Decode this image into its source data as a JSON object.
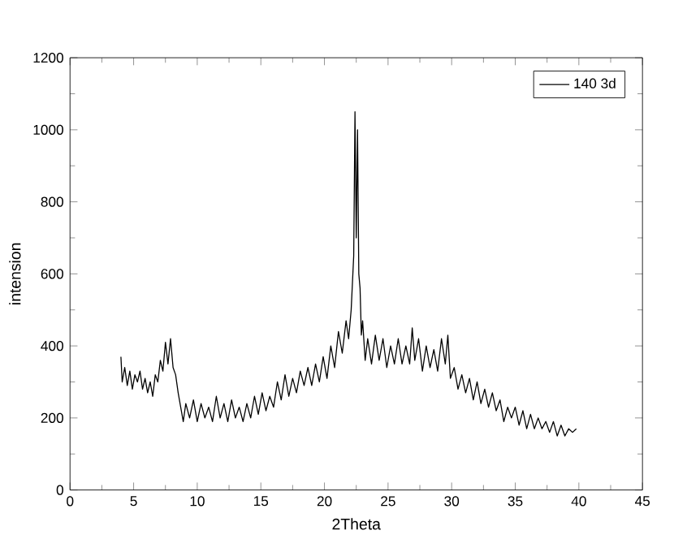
{
  "chart_data": {
    "type": "line",
    "xlabel": "2Theta",
    "ylabel": "intension",
    "xlim": [
      0,
      45
    ],
    "ylim": [
      0,
      1200
    ],
    "xticks": [
      0,
      5,
      10,
      15,
      20,
      25,
      30,
      35,
      40,
      45
    ],
    "yticks": [
      0,
      200,
      400,
      600,
      800,
      1000,
      1200
    ],
    "legend": "top right",
    "grid": false,
    "marker": "none",
    "line_style": "solid",
    "series": [
      {
        "name": "140 3d",
        "color": "#000000",
        "x": [
          4.0,
          4.1,
          4.3,
          4.5,
          4.7,
          4.9,
          5.1,
          5.3,
          5.5,
          5.7,
          5.9,
          6.1,
          6.3,
          6.5,
          6.7,
          6.9,
          7.1,
          7.3,
          7.5,
          7.7,
          7.9,
          8.1,
          8.3,
          8.5,
          8.7,
          8.9,
          9.1,
          9.4,
          9.7,
          10.0,
          10.3,
          10.6,
          10.9,
          11.2,
          11.5,
          11.8,
          12.1,
          12.4,
          12.7,
          13.0,
          13.3,
          13.6,
          13.9,
          14.2,
          14.5,
          14.8,
          15.1,
          15.4,
          15.7,
          16.0,
          16.3,
          16.6,
          16.9,
          17.2,
          17.5,
          17.8,
          18.1,
          18.4,
          18.7,
          19.0,
          19.3,
          19.6,
          19.9,
          20.2,
          20.5,
          20.8,
          21.1,
          21.4,
          21.7,
          21.9,
          22.1,
          22.3,
          22.4,
          22.5,
          22.6,
          22.7,
          22.8,
          22.9,
          23.0,
          23.2,
          23.4,
          23.7,
          24.0,
          24.3,
          24.6,
          24.9,
          25.2,
          25.5,
          25.8,
          26.1,
          26.4,
          26.7,
          26.9,
          27.1,
          27.4,
          27.7,
          28.0,
          28.3,
          28.6,
          28.9,
          29.2,
          29.5,
          29.7,
          29.9,
          30.2,
          30.5,
          30.8,
          31.1,
          31.4,
          31.7,
          32.0,
          32.3,
          32.6,
          32.9,
          33.2,
          33.5,
          33.8,
          34.1,
          34.4,
          34.7,
          35.0,
          35.3,
          35.6,
          35.9,
          36.2,
          36.5,
          36.8,
          37.1,
          37.4,
          37.7,
          38.0,
          38.3,
          38.6,
          38.9,
          39.2,
          39.5,
          39.8
        ],
        "values": [
          370,
          300,
          340,
          290,
          330,
          280,
          320,
          300,
          330,
          280,
          310,
          270,
          300,
          260,
          320,
          300,
          360,
          330,
          410,
          350,
          420,
          340,
          320,
          270,
          230,
          190,
          240,
          200,
          250,
          190,
          240,
          200,
          230,
          190,
          260,
          200,
          240,
          190,
          250,
          200,
          230,
          190,
          240,
          200,
          260,
          210,
          270,
          220,
          260,
          230,
          300,
          250,
          320,
          260,
          310,
          270,
          330,
          290,
          340,
          290,
          350,
          300,
          370,
          310,
          400,
          340,
          440,
          380,
          470,
          420,
          500,
          650,
          1050,
          700,
          1000,
          600,
          560,
          430,
          470,
          360,
          420,
          350,
          430,
          360,
          420,
          340,
          400,
          350,
          420,
          350,
          400,
          350,
          450,
          360,
          420,
          330,
          400,
          340,
          390,
          330,
          420,
          350,
          430,
          310,
          340,
          280,
          320,
          270,
          310,
          250,
          300,
          240,
          280,
          230,
          270,
          220,
          250,
          190,
          230,
          200,
          230,
          180,
          220,
          170,
          210,
          170,
          200,
          170,
          190,
          160,
          190,
          150,
          180,
          150,
          170,
          160,
          170
        ]
      }
    ]
  }
}
